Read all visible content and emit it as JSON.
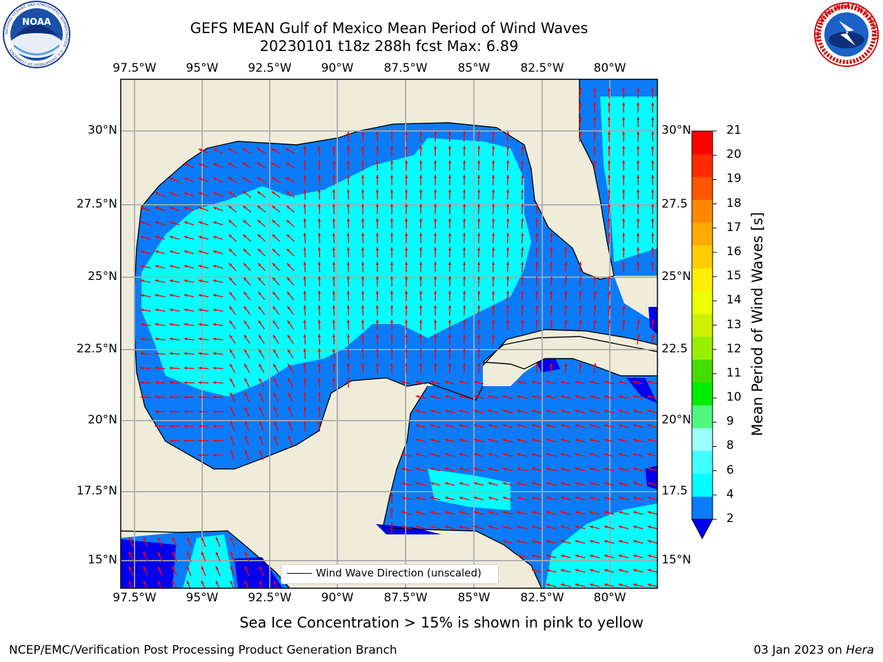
{
  "header": {
    "title_line1": "GEFS MEAN Gulf of Mexico Mean Period of Wind Waves",
    "title_line2": "20230101 t18z 288h fcst   Max: 6.89"
  },
  "logos": {
    "left": "NOAA",
    "left_ring": "NATIONAL OCEANIC AND ATMOSPHERIC ADMINISTRATION · U.S. DEPARTMENT OF COMMERCE",
    "right_ring": "NATIONAL WEATHER SERVICE"
  },
  "map": {
    "lon_ticks": [
      "97.5°W",
      "95°W",
      "92.5°W",
      "90°W",
      "87.5°W",
      "85°W",
      "82.5°W",
      "80°W"
    ],
    "lat_ticks_left": [
      "30°N",
      "27.5°N",
      "25°N",
      "22.5°N",
      "20°N",
      "17.5°N",
      "15°N"
    ],
    "lat_ticks_right": [
      "30°N",
      "27.5",
      "25°N",
      "22.5",
      "20°N",
      "17.5",
      "15°N"
    ],
    "legend_label": "Wind Wave Direction (unscaled)",
    "colors": {
      "land": "#efedd9",
      "ocean_2_4": "#0a7bf9",
      "ocean_4_6": "#00ffff",
      "ocean_lt_2": "#0000ee",
      "arrows": "#ff0000",
      "grid": "#aaaaaa"
    }
  },
  "colorbar": {
    "label": "Mean Period of Wind Waves [s]",
    "ticks": [
      "21",
      "20",
      "19",
      "18",
      "17",
      "16",
      "15",
      "14",
      "13",
      "12",
      "11",
      "10",
      "9",
      "8",
      "6",
      "4",
      "2"
    ],
    "colors": [
      "#0a7bf9",
      "#00ffff",
      "#40ffff",
      "#99ffff",
      "#50f880",
      "#00ee00",
      "#44dd00",
      "#99ee00",
      "#ccf000",
      "#eeff00",
      "#ffee00",
      "#ffcc00",
      "#ffaa00",
      "#ff8800",
      "#ff5500",
      "#ff2a00",
      "#ff0000"
    ],
    "under_color": "#0000ee"
  },
  "caption": "Sea Ice Concentration > 15% is shown in pink to yellow",
  "footer": {
    "left": "NCEP/EMC/Verification Post Processing Product Generation Branch",
    "date": "03 Jan 2023 on ",
    "host": "Hera"
  }
}
